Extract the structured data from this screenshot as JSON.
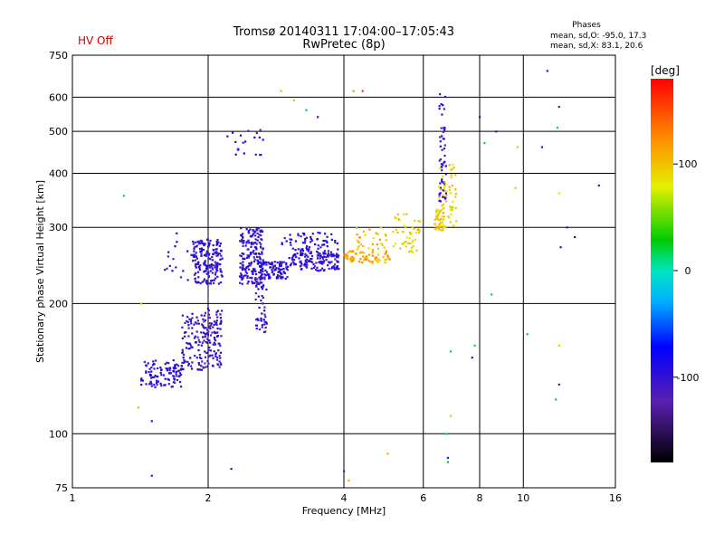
{
  "status": {
    "hv": "HV Off",
    "hv_color": "#cc0000"
  },
  "header": {
    "title": "Tromsø 20140311 17:04:00–17:05:43",
    "subtitle": "RwPretec (8p)"
  },
  "stats": {
    "heading": "Phases",
    "line_o": "mean, sd,O: -95.0, 17.3",
    "line_x": "mean, sd,X:  83.1, 20.6"
  },
  "colorbar": {
    "unit": "[deg]",
    "ticks": [
      "100",
      "0",
      "-100"
    ],
    "tick_values": [
      100,
      0,
      -100
    ],
    "range": [
      -180,
      180
    ]
  },
  "chart_data": {
    "type": "scatter",
    "xlabel": "Frequency [MHz]",
    "ylabel": "Stationary phase Virtual Height [km]",
    "x_scale": "log",
    "y_scale": "log",
    "xlim": [
      1,
      16
    ],
    "ylim": [
      75,
      750
    ],
    "x_ticks": [
      {
        "v": 1,
        "label": "1"
      },
      {
        "v": 2,
        "label": "2"
      },
      {
        "v": 4,
        "label": "4"
      },
      {
        "v": 6,
        "label": "6"
      },
      {
        "v": 8,
        "label": "8"
      },
      {
        "v": 10,
        "label": "10"
      },
      {
        "v": 16,
        "label": "16"
      }
    ],
    "y_ticks": [
      {
        "v": 75,
        "label": "75"
      },
      {
        "v": 100,
        "label": "100"
      },
      {
        "v": 200,
        "label": "200"
      },
      {
        "v": 300,
        "label": "300"
      },
      {
        "v": 400,
        "label": "400"
      },
      {
        "v": 500,
        "label": "500"
      },
      {
        "v": 600,
        "label": "600"
      },
      {
        "v": 750,
        "label": "750"
      }
    ],
    "grid": true,
    "clusters": [
      {
        "fmin": 1.42,
        "fmax": 1.75,
        "hmin": 128,
        "hmax": 148,
        "phase": -100,
        "n": 110
      },
      {
        "fmin": 1.75,
        "fmax": 1.95,
        "hmin": 140,
        "hmax": 190,
        "phase": -100,
        "n": 90
      },
      {
        "fmin": 1.95,
        "fmax": 2.15,
        "hmin": 142,
        "hmax": 195,
        "phase": -105,
        "n": 110
      },
      {
        "fmin": 1.85,
        "fmax": 2.15,
        "hmin": 222,
        "hmax": 282,
        "phase": -100,
        "n": 180
      },
      {
        "fmin": 2.35,
        "fmax": 2.65,
        "hmin": 222,
        "hmax": 300,
        "phase": -100,
        "n": 190
      },
      {
        "fmin": 2.6,
        "fmax": 3.0,
        "hmin": 228,
        "hmax": 250,
        "phase": -100,
        "n": 110
      },
      {
        "fmin": 3.0,
        "fmax": 3.9,
        "hmin": 238,
        "hmax": 262,
        "phase": -100,
        "n": 140
      },
      {
        "fmin": 2.9,
        "fmax": 3.9,
        "hmin": 262,
        "hmax": 292,
        "phase": -95,
        "n": 70
      },
      {
        "fmin": 2.55,
        "fmax": 2.7,
        "hmin": 170,
        "hmax": 225,
        "phase": -100,
        "n": 45
      },
      {
        "fmin": 4.0,
        "fmax": 5.1,
        "hmin": 248,
        "hmax": 265,
        "phase": 110,
        "n": 70
      },
      {
        "fmin": 4.2,
        "fmax": 5.0,
        "hmin": 265,
        "hmax": 300,
        "phase": 100,
        "n": 30
      },
      {
        "fmin": 5.1,
        "fmax": 5.9,
        "hmin": 262,
        "hmax": 322,
        "phase": 90,
        "n": 50
      },
      {
        "fmin": 6.35,
        "fmax": 6.65,
        "hmin": 295,
        "hmax": 330,
        "phase": 100,
        "n": 40
      },
      {
        "fmin": 6.5,
        "fmax": 6.75,
        "hmin": 330,
        "hmax": 620,
        "phase": -100,
        "n": 55
      },
      {
        "fmin": 6.5,
        "fmax": 7.1,
        "hmin": 300,
        "hmax": 420,
        "phase": 90,
        "n": 55
      },
      {
        "fmin": 2.2,
        "fmax": 2.65,
        "hmin": 440,
        "hmax": 510,
        "phase": -100,
        "n": 20
      },
      {
        "fmin": 1.6,
        "fmax": 1.9,
        "hmin": 225,
        "hmax": 300,
        "phase": -100,
        "n": 20
      }
    ],
    "points": [
      {
        "f": 1.3,
        "h": 355,
        "p": 20
      },
      {
        "f": 1.42,
        "h": 200,
        "p": 100
      },
      {
        "f": 1.5,
        "h": 107,
        "p": -100
      },
      {
        "f": 1.5,
        "h": 80,
        "p": -100
      },
      {
        "f": 1.4,
        "h": 115,
        "p": 110
      },
      {
        "f": 2.25,
        "h": 83,
        "p": -100
      },
      {
        "f": 4.0,
        "h": 82,
        "p": -110
      },
      {
        "f": 4.1,
        "h": 78,
        "p": 110
      },
      {
        "f": 4.2,
        "h": 620,
        "p": 120
      },
      {
        "f": 4.4,
        "h": 620,
        "p": 160
      },
      {
        "f": 5.0,
        "h": 90,
        "p": 110
      },
      {
        "f": 6.75,
        "h": 100,
        "p": 20
      },
      {
        "f": 6.8,
        "h": 86,
        "p": 20
      },
      {
        "f": 6.8,
        "h": 88,
        "p": -100
      },
      {
        "f": 8.5,
        "h": 210,
        "p": 20
      },
      {
        "f": 8.7,
        "h": 500,
        "p": -130
      },
      {
        "f": 9.7,
        "h": 460,
        "p": 100
      },
      {
        "f": 10.2,
        "h": 170,
        "p": 20
      },
      {
        "f": 11.0,
        "h": 460,
        "p": -100
      },
      {
        "f": 11.3,
        "h": 690,
        "p": -100
      },
      {
        "f": 12.0,
        "h": 570,
        "p": -110
      },
      {
        "f": 11.9,
        "h": 510,
        "p": 20
      },
      {
        "f": 12.0,
        "h": 360,
        "p": 90
      },
      {
        "f": 12.1,
        "h": 270,
        "p": -100
      },
      {
        "f": 11.8,
        "h": 120,
        "p": 20
      },
      {
        "f": 12.0,
        "h": 130,
        "p": -100
      },
      {
        "f": 12.0,
        "h": 160,
        "p": 100
      },
      {
        "f": 12.5,
        "h": 300,
        "p": -100
      },
      {
        "f": 13.0,
        "h": 285,
        "p": -150
      },
      {
        "f": 14.7,
        "h": 375,
        "p": -100
      },
      {
        "f": 3.1,
        "h": 590,
        "p": 100
      },
      {
        "f": 3.3,
        "h": 560,
        "p": 20
      },
      {
        "f": 3.5,
        "h": 540,
        "p": -100
      },
      {
        "f": 2.9,
        "h": 620,
        "p": 110
      },
      {
        "f": 7.8,
        "h": 160,
        "p": 20
      },
      {
        "f": 7.7,
        "h": 150,
        "p": -100
      },
      {
        "f": 6.9,
        "h": 110,
        "p": 100
      },
      {
        "f": 6.9,
        "h": 155,
        "p": 20
      },
      {
        "f": 9.6,
        "h": 370,
        "p": 100
      },
      {
        "f": 8.0,
        "h": 540,
        "p": -100
      },
      {
        "f": 8.2,
        "h": 470,
        "p": 20
      }
    ]
  }
}
